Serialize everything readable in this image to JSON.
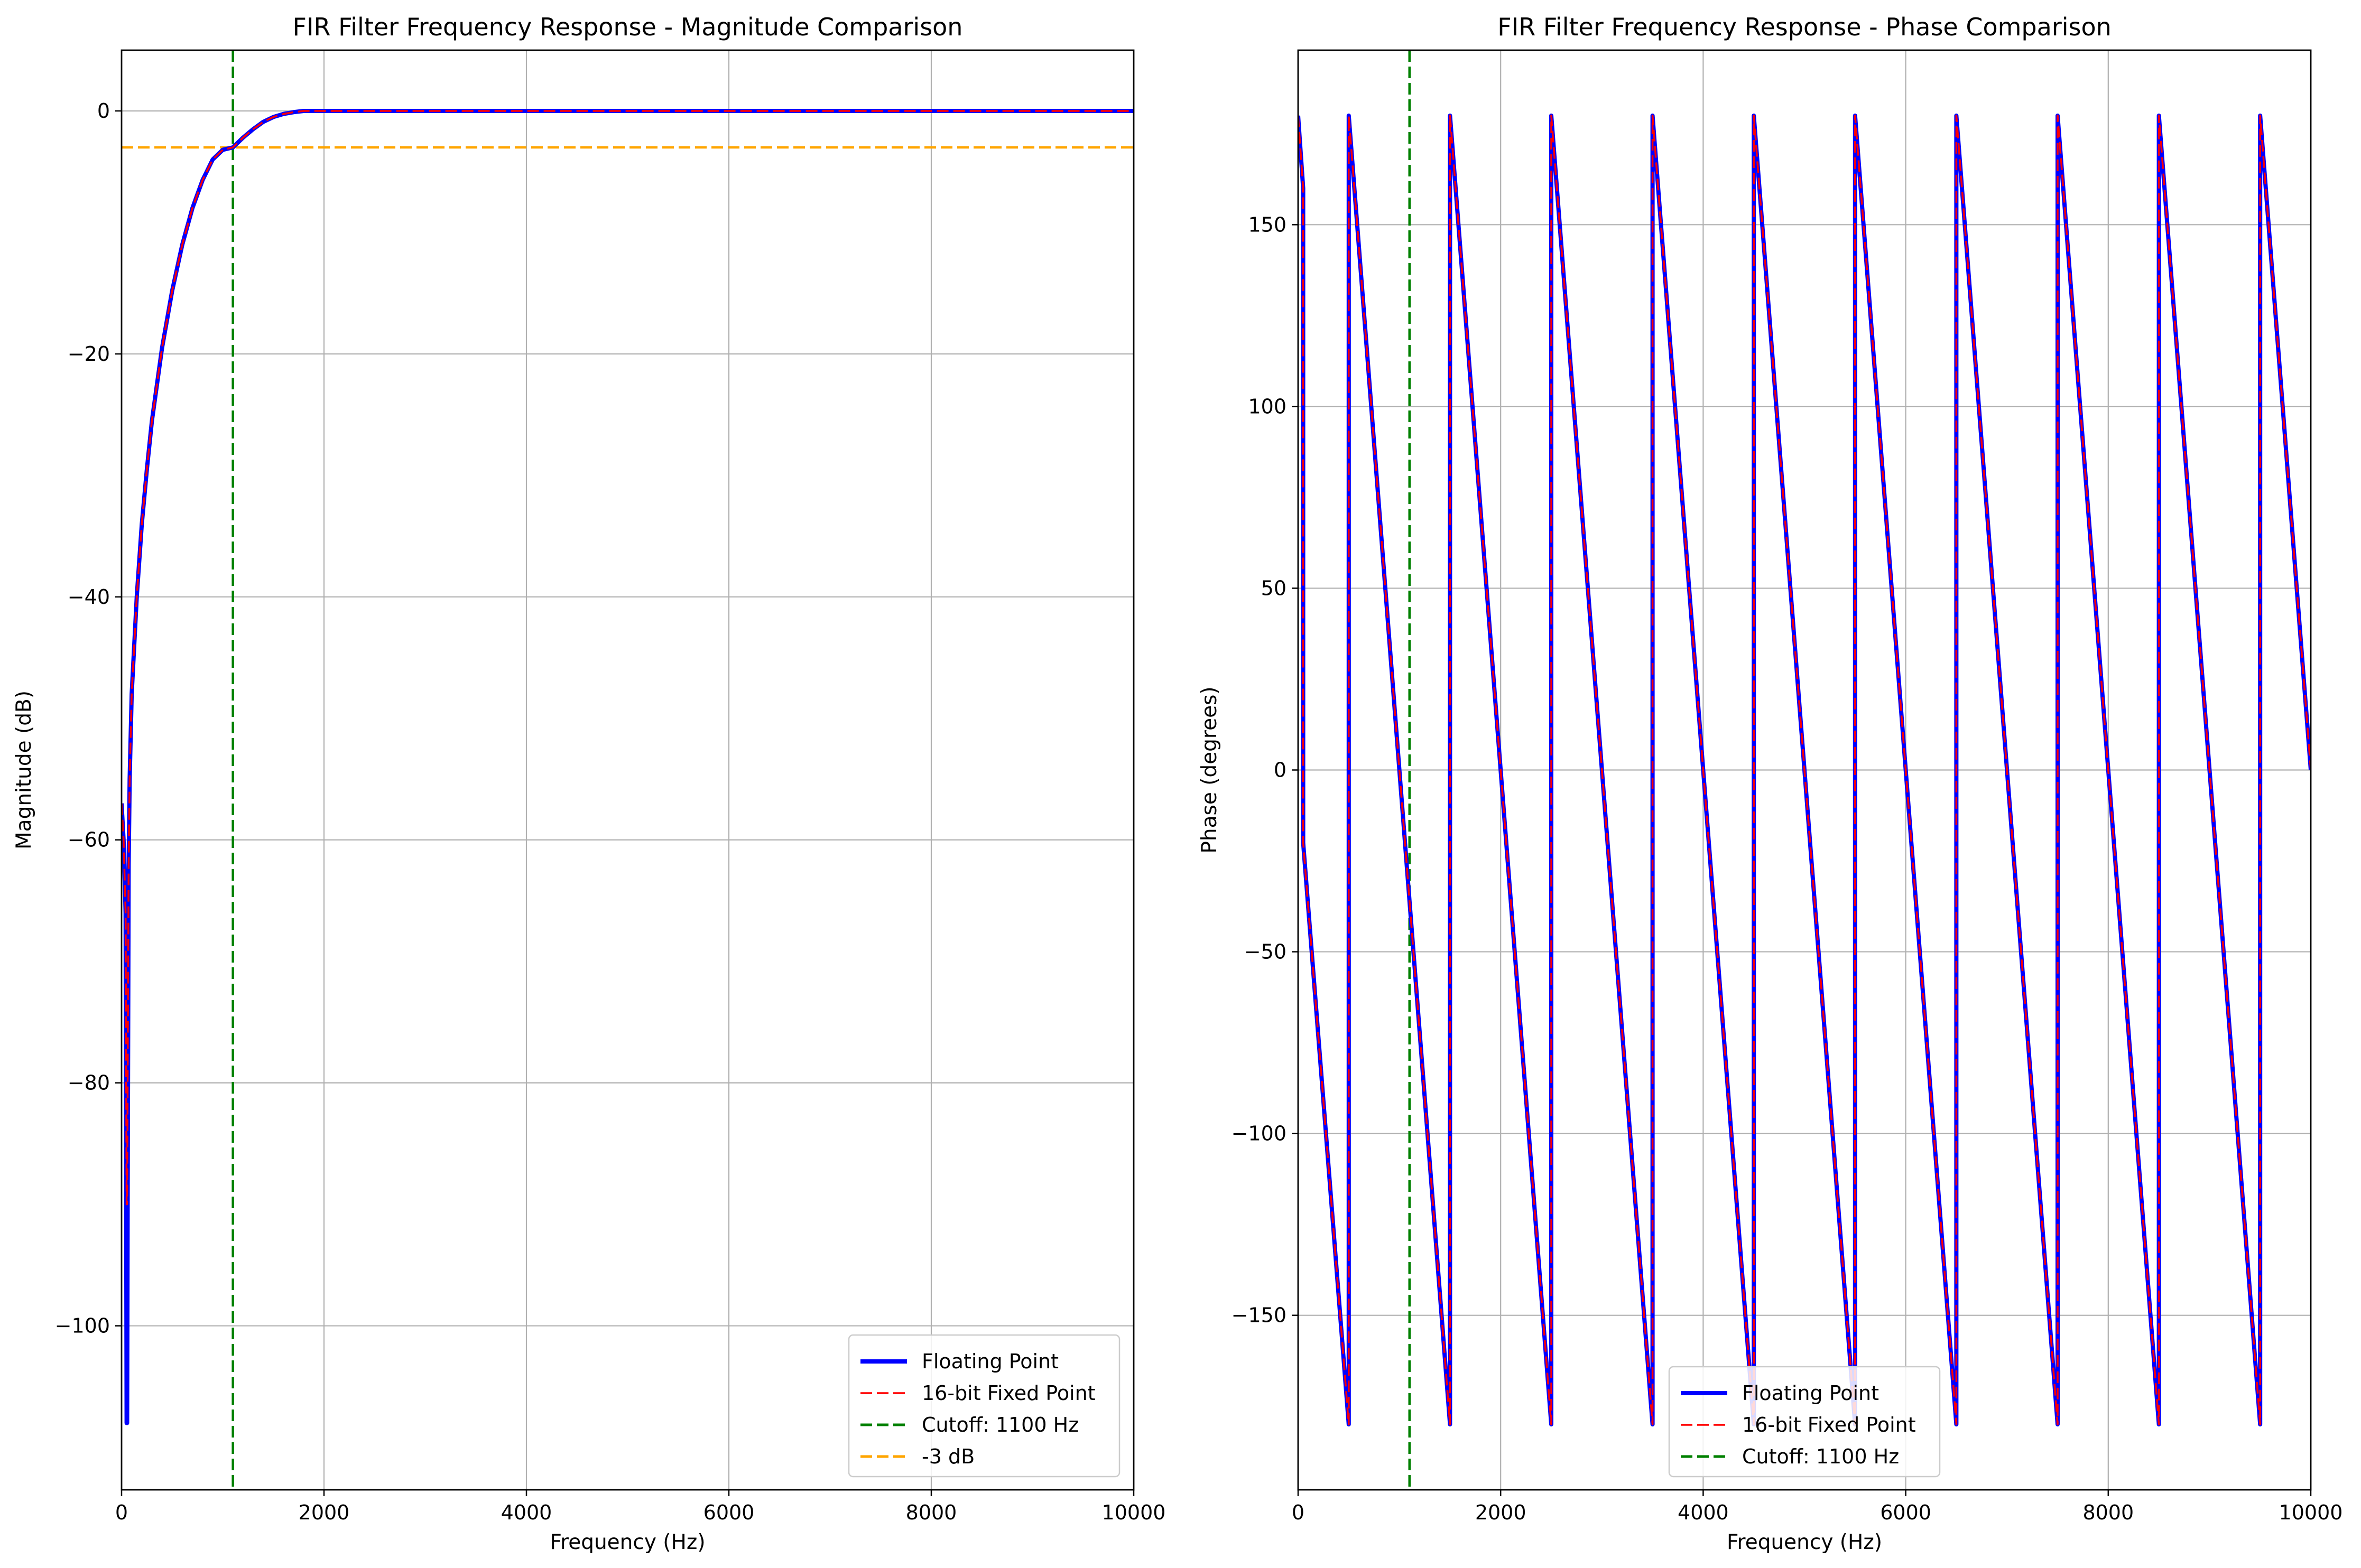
{
  "figure": {
    "background": "#ffffff"
  },
  "chart_data": [
    {
      "type": "line",
      "title": "FIR Filter Frequency Response - Magnitude Comparison",
      "xlabel": "Frequency (Hz)",
      "ylabel": "Magnitude (dB)",
      "xlim": [
        0,
        10000
      ],
      "ylim": [
        -113.5,
        5
      ],
      "xticks": [
        0,
        2000,
        4000,
        6000,
        8000,
        10000
      ],
      "xtick_labels": [
        "0",
        "2000",
        "4000",
        "6000",
        "8000",
        "10000"
      ],
      "yticks": [
        0,
        -20,
        -40,
        -60,
        -80,
        -100
      ],
      "ytick_labels": [
        "0",
        "−20",
        "−40",
        "−60",
        "−80",
        "−100"
      ],
      "grid": true,
      "legend_position": "lower-right",
      "legend": [
        {
          "label": "Floating Point",
          "color": "#0000ff",
          "style": "solid"
        },
        {
          "label": "16-bit Fixed Point",
          "color": "#ff0000",
          "style": "dashed"
        },
        {
          "label": "Cutoff: 1100 Hz",
          "color": "#008000",
          "style": "dashed"
        },
        {
          "label": "-3 dB",
          "color": "#ffa500",
          "style": "dashed"
        }
      ],
      "series": [
        {
          "name": "Floating Point",
          "color": "#0000ff",
          "style": "solid",
          "x": [
            0,
            20,
            40,
            50,
            55,
            60,
            70,
            80,
            100,
            150,
            200,
            250,
            300,
            400,
            500,
            600,
            700,
            800,
            900,
            1000,
            1100,
            1200,
            1300,
            1400,
            1500,
            1600,
            1700,
            1800,
            1900,
            2000,
            3000,
            4000,
            5000,
            6000,
            7000,
            8000,
            9000,
            10000
          ],
          "y": [
            -57,
            -60,
            -66,
            -108,
            -108,
            -90,
            -62,
            -55,
            -48,
            -40,
            -34,
            -29.5,
            -25.5,
            -19.5,
            -14.8,
            -11,
            -8,
            -5.7,
            -4,
            -3.2,
            -3,
            -2.2,
            -1.5,
            -0.9,
            -0.5,
            -0.25,
            -0.1,
            0,
            0,
            0,
            0,
            0,
            0,
            0,
            0,
            0,
            0,
            0
          ]
        },
        {
          "name": "16-bit Fixed Point",
          "color": "#ff0000",
          "style": "dashed",
          "x": [
            0,
            20,
            40,
            50,
            55,
            60,
            70,
            80,
            100,
            150,
            200,
            250,
            300,
            400,
            500,
            600,
            700,
            800,
            900,
            1000,
            1100,
            1200,
            1300,
            1400,
            1500,
            1600,
            1700,
            1800,
            1900,
            2000,
            3000,
            4000,
            5000,
            6000,
            7000,
            8000,
            9000,
            10000
          ],
          "y": [
            -57,
            -60,
            -66,
            -90,
            -90,
            -80,
            -62,
            -55,
            -48,
            -40,
            -34,
            -29.5,
            -25.5,
            -19.5,
            -14.8,
            -11,
            -8,
            -5.7,
            -4,
            -3.2,
            -3,
            -2.2,
            -1.5,
            -0.9,
            -0.5,
            -0.25,
            -0.1,
            0,
            0,
            0,
            0,
            0,
            0,
            0,
            0,
            0,
            0,
            0
          ]
        }
      ],
      "reference_lines": [
        {
          "name": "Cutoff: 1100 Hz",
          "orientation": "vertical",
          "value": 1100,
          "color": "#008000"
        },
        {
          "name": "-3 dB",
          "orientation": "horizontal",
          "value": -3,
          "color": "#ffa500"
        }
      ]
    },
    {
      "type": "line",
      "title": "FIR Filter Frequency Response - Phase Comparison",
      "xlabel": "Frequency (Hz)",
      "ylabel": "Phase (degrees)",
      "xlim": [
        0,
        10000
      ],
      "ylim": [
        -198,
        198
      ],
      "xticks": [
        0,
        2000,
        4000,
        6000,
        8000,
        10000
      ],
      "xtick_labels": [
        "0",
        "2000",
        "4000",
        "6000",
        "8000",
        "10000"
      ],
      "yticks": [
        150,
        100,
        50,
        0,
        -50,
        -100,
        -150
      ],
      "ytick_labels": [
        "150",
        "100",
        "50",
        "0",
        "−50",
        "−100",
        "−150"
      ],
      "grid": true,
      "legend_position": "lower-center",
      "legend": [
        {
          "label": "Floating Point",
          "color": "#0000ff",
          "style": "solid"
        },
        {
          "label": "16-bit Fixed Point",
          "color": "#ff0000",
          "style": "dashed"
        },
        {
          "label": "Cutoff: 1100 Hz",
          "color": "#008000",
          "style": "dashed"
        }
      ],
      "series": [
        {
          "name": "Floating Point",
          "color": "#0000ff",
          "style": "solid",
          "x": [
            0,
            50,
            50,
            500,
            500,
            1500,
            1500,
            2500,
            2500,
            3500,
            3500,
            4500,
            4500,
            5500,
            5500,
            6500,
            6500,
            7500,
            7500,
            8500,
            8500,
            9500,
            9500,
            10000
          ],
          "y": [
            180,
            160,
            -20,
            -180,
            180,
            -180,
            180,
            -180,
            180,
            -180,
            180,
            -180,
            180,
            -180,
            180,
            -180,
            180,
            -180,
            180,
            -180,
            180,
            -180,
            180,
            0
          ]
        },
        {
          "name": "16-bit Fixed Point",
          "color": "#ff0000",
          "style": "dashed",
          "x": [
            0,
            50,
            50,
            500,
            500,
            1500,
            1500,
            2500,
            2500,
            3500,
            3500,
            4500,
            4500,
            5500,
            5500,
            6500,
            6500,
            7500,
            7500,
            8500,
            8500,
            9500,
            9500,
            10000
          ],
          "y": [
            180,
            160,
            -20,
            -180,
            180,
            -180,
            180,
            -180,
            180,
            -180,
            180,
            -180,
            180,
            -180,
            180,
            -180,
            180,
            -180,
            180,
            -180,
            180,
            -180,
            180,
            0
          ]
        }
      ],
      "reference_lines": [
        {
          "name": "Cutoff: 1100 Hz",
          "orientation": "vertical",
          "value": 1100,
          "color": "#008000"
        }
      ]
    }
  ]
}
